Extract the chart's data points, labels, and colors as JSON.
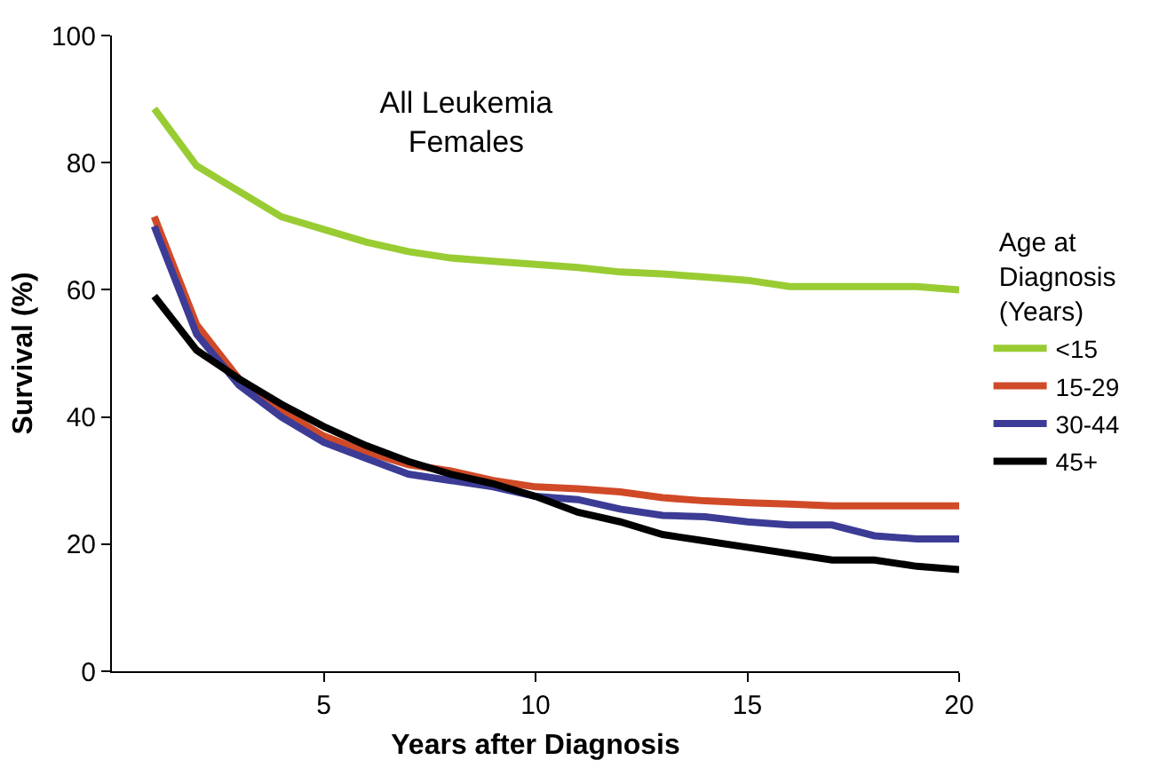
{
  "chart_data": {
    "type": "line",
    "title": "All Leukemia\nFemales",
    "xlabel": "Years after Diagnosis",
    "ylabel": "Survival (%)",
    "legend_title": "Age at\nDiagnosis\n(Years)",
    "x": [
      1,
      2,
      3,
      4,
      5,
      6,
      7,
      8,
      9,
      10,
      11,
      12,
      13,
      14,
      15,
      16,
      17,
      18,
      19,
      20
    ],
    "series": [
      {
        "name": "<15",
        "color": "#99cc33",
        "values": [
          88.5,
          79.5,
          75.5,
          71.5,
          69.5,
          67.5,
          66,
          65,
          64.5,
          64,
          63.5,
          62.8,
          62.5,
          62,
          61.5,
          60.5,
          60.5,
          60.5,
          60.5,
          60
        ]
      },
      {
        "name": "15-29",
        "color": "#d04a28",
        "values": [
          71.5,
          54.5,
          46,
          41,
          37,
          34.5,
          32.5,
          31.5,
          30,
          29,
          28.7,
          28.2,
          27.3,
          26.8,
          26.5,
          26.3,
          26,
          26,
          26,
          26
        ]
      },
      {
        "name": "30-44",
        "color": "#3c3c96",
        "values": [
          70,
          53,
          45,
          40,
          36,
          33.5,
          31,
          30,
          29,
          27.5,
          27,
          25.5,
          24.5,
          24.3,
          23.5,
          23,
          23,
          21.3,
          20.8,
          20.8
        ]
      },
      {
        "name": "45+",
        "color": "#000000",
        "values": [
          59,
          50.5,
          46,
          42,
          38.5,
          35.5,
          33,
          31,
          29.5,
          27.5,
          25,
          23.5,
          21.5,
          20.5,
          19.5,
          18.5,
          17.5,
          17.5,
          16.5,
          16
        ]
      }
    ],
    "xlim": [
      0,
      20
    ],
    "xticks": [
      5,
      10,
      15,
      20
    ],
    "ylim": [
      0,
      100
    ],
    "yticks": [
      0,
      20,
      40,
      60,
      80,
      100
    ],
    "grid": false,
    "legend": "right",
    "marker": "none",
    "line_style": "solid"
  }
}
